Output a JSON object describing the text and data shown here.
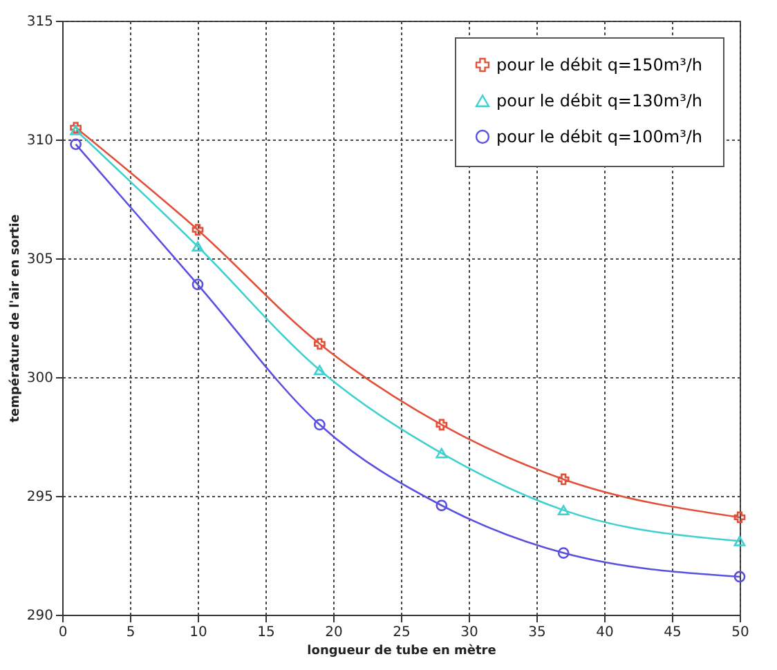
{
  "chart_data": {
    "type": "line",
    "xlabel": "longueur de tube en mètre",
    "ylabel": "température de l'air en sortie",
    "x": [
      1,
      10,
      19,
      28,
      37,
      50
    ],
    "series": [
      {
        "name": "pour le débit q=150m³/h",
        "color": "#e0503a",
        "marker": "cross",
        "values": [
          310.5,
          306.2,
          301.4,
          298.0,
          295.7,
          294.1
        ]
      },
      {
        "name": "pour le débit q=130m³/h",
        "color": "#40d0d0",
        "marker": "triangle",
        "values": [
          310.4,
          305.5,
          300.3,
          296.8,
          294.4,
          293.1
        ]
      },
      {
        "name": "pour le débit q=100m³/h",
        "color": "#5a50e0",
        "marker": "circle",
        "values": [
          309.8,
          303.9,
          298.0,
          294.6,
          292.6,
          291.6
        ]
      }
    ],
    "xlim": [
      0,
      50
    ],
    "xticks": [
      0,
      5,
      10,
      15,
      20,
      25,
      30,
      35,
      40,
      45,
      50
    ],
    "ylim": [
      290,
      315
    ],
    "yticks": [
      290,
      295,
      300,
      305,
      310,
      315
    ],
    "grid": true,
    "legend": "top right",
    "line_style": "solid"
  }
}
